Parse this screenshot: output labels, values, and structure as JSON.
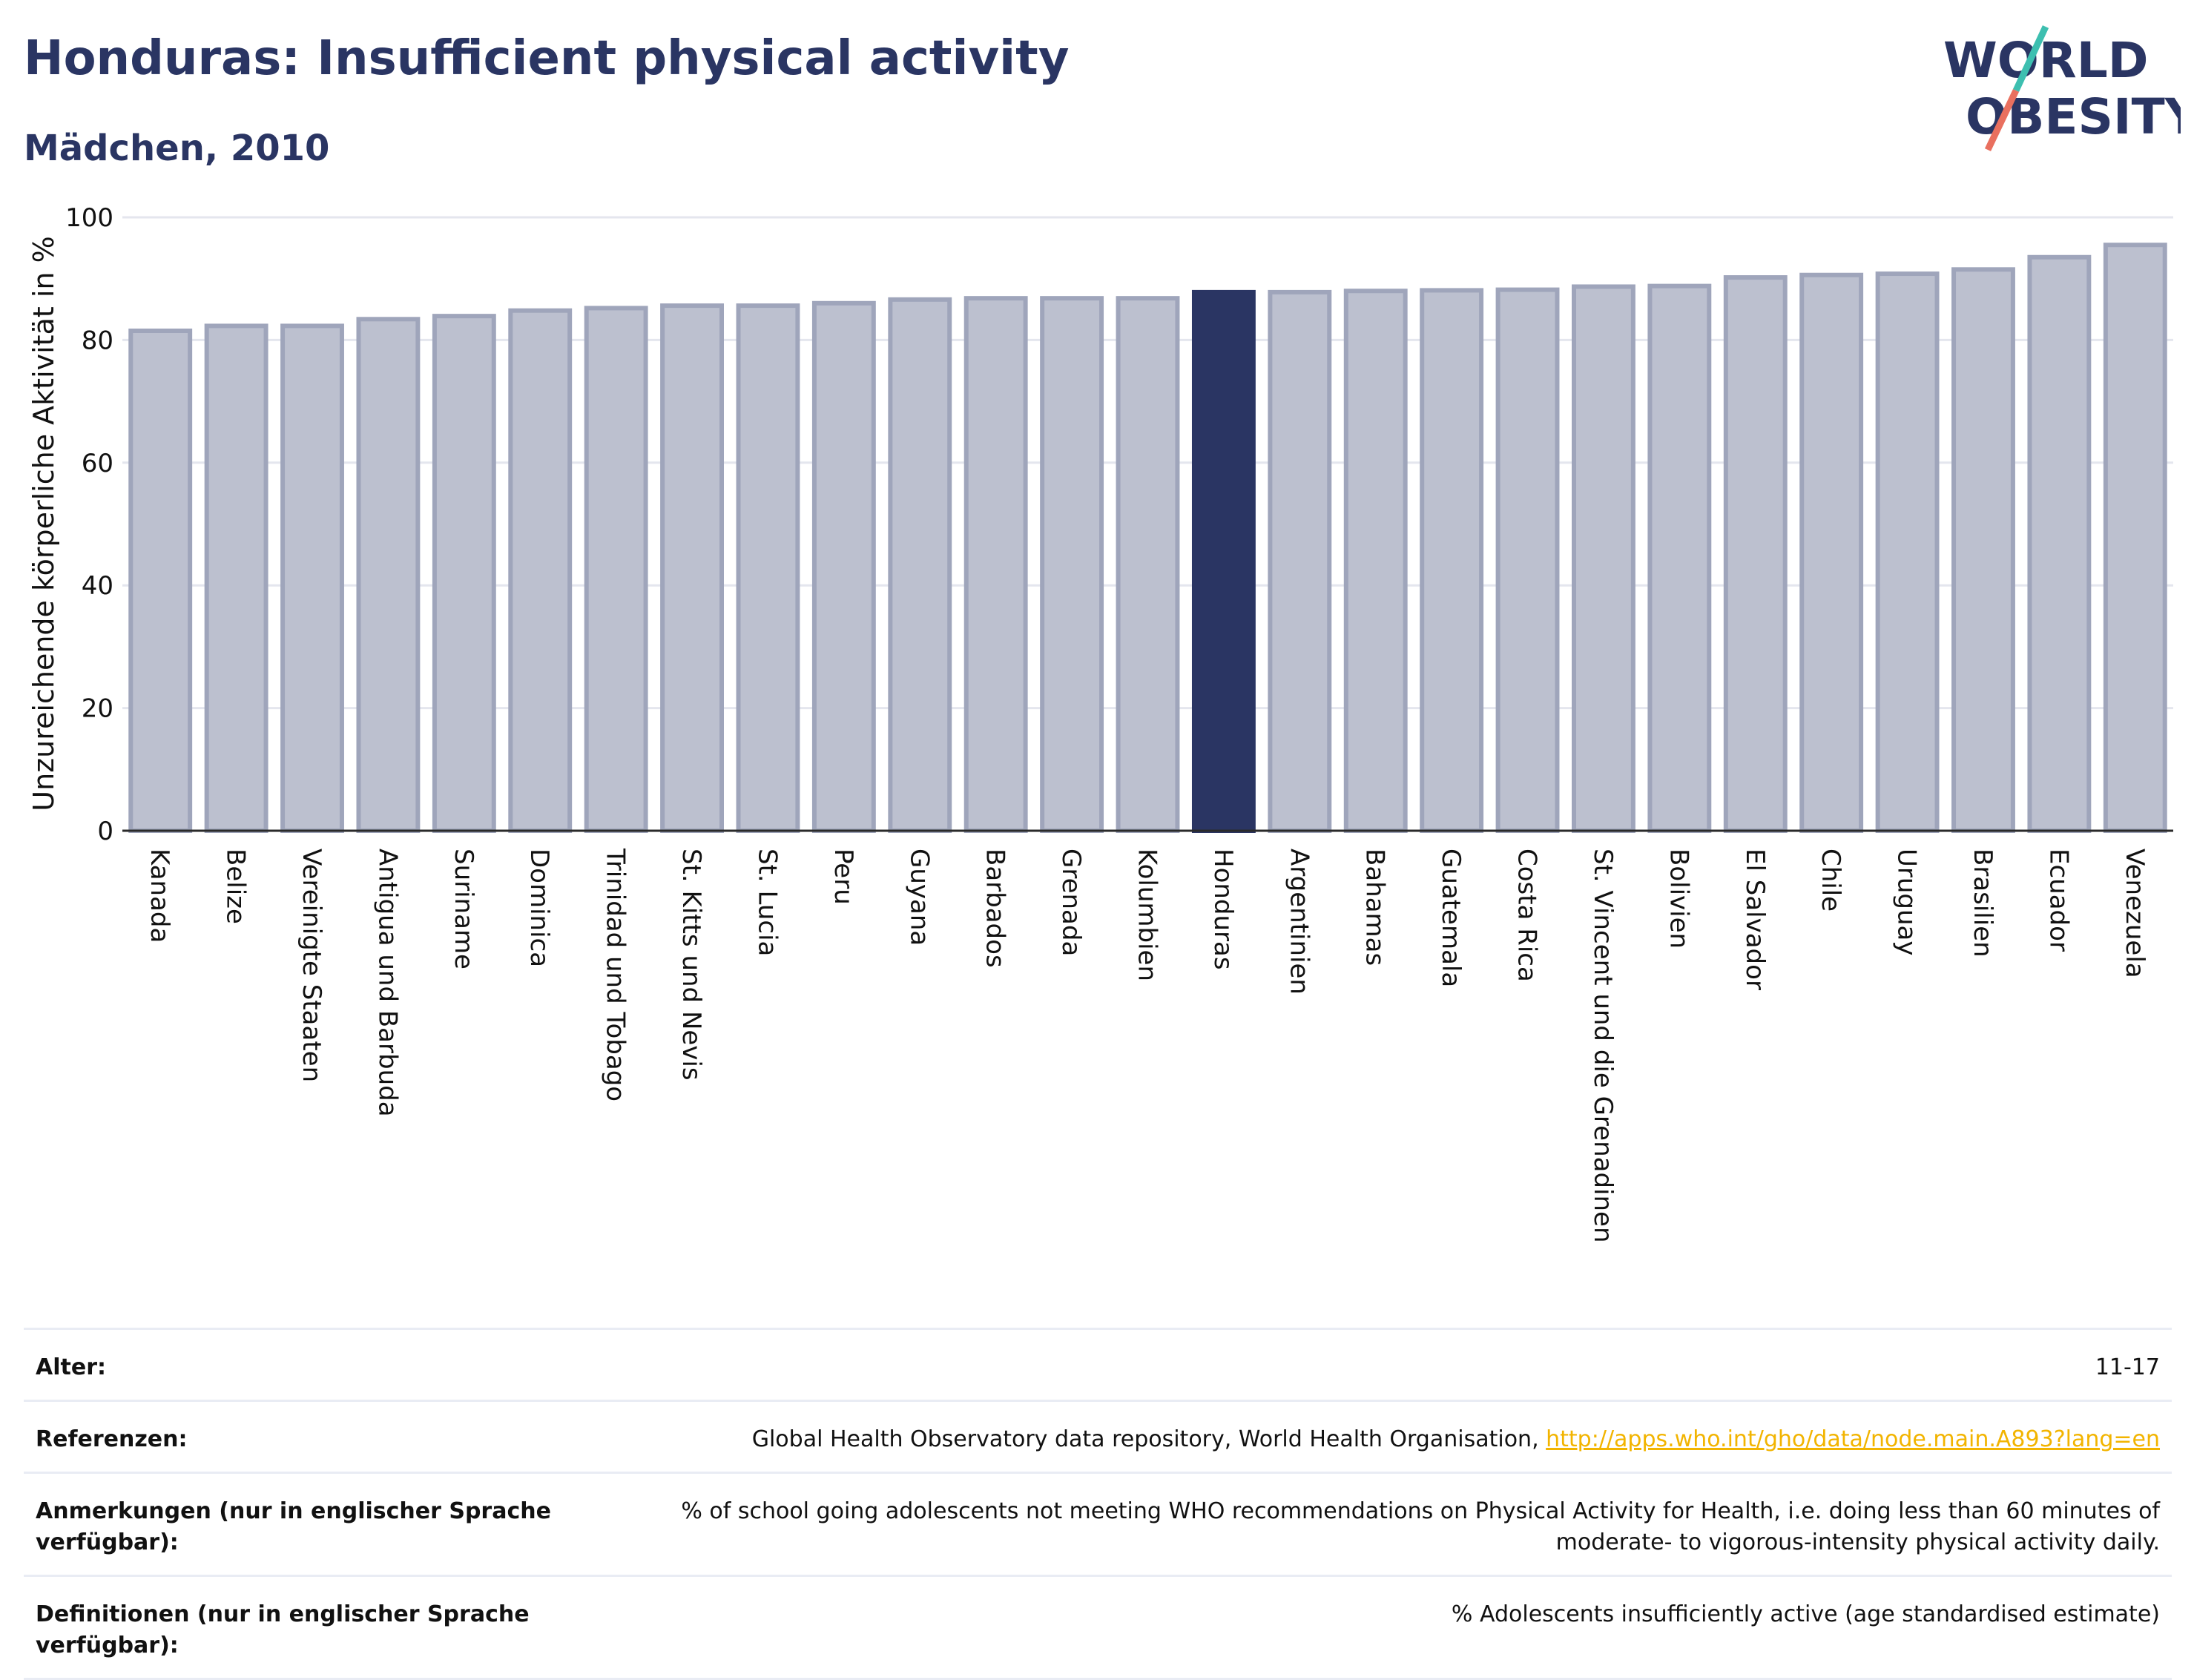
{
  "header": {
    "title": "Honduras: Insufficient physical activity",
    "subtitle": "Mädchen, 2010"
  },
  "logo": {
    "line1": "WORLD",
    "line2": "OBESITY",
    "colors": {
      "text": "#2a3563",
      "slash_top": "#3dbfb0",
      "slash_bottom": "#e9705f"
    }
  },
  "colors": {
    "bar": "#bcc0cf",
    "bar_border": "#9fa5bb",
    "highlight": "#2a3563",
    "grid": "#e4e6ee",
    "link": "#f2b400"
  },
  "chart_data": {
    "type": "bar",
    "ylabel": "Unzureichende körperliche Aktivität in %",
    "ylim": [
      0,
      100
    ],
    "yticks": [
      0,
      20,
      40,
      60,
      80,
      100
    ],
    "grid": true,
    "highlight": "Honduras",
    "categories": [
      "Kanada",
      "Belize",
      "Vereinigte Staaten",
      "Antigua und Barbuda",
      "Suriname",
      "Dominica",
      "Trinidad und Tobago",
      "St. Kitts und Nevis",
      "St. Lucia",
      "Peru",
      "Guyana",
      "Barbados",
      "Grenada",
      "Kolumbien",
      "Honduras",
      "Argentinien",
      "Bahamas",
      "Guatemala",
      "Costa Rica",
      "St. Vincent und die Grenadinen",
      "Bolivien",
      "El Salvador",
      "Chile",
      "Uruguay",
      "Brasilien",
      "Ecuador",
      "Venezuela"
    ],
    "values": [
      81.5,
      82.3,
      82.3,
      83.4,
      83.9,
      84.8,
      85.2,
      85.6,
      85.6,
      86.0,
      86.6,
      86.8,
      86.8,
      86.8,
      87.8,
      87.8,
      88.0,
      88.1,
      88.2,
      88.7,
      88.8,
      90.2,
      90.6,
      90.8,
      91.5,
      93.5,
      95.5
    ]
  },
  "info": [
    {
      "label": "Alter:",
      "value": "11-17"
    },
    {
      "label": "Referenzen:",
      "value": "Global Health Observatory data repository, World Health Organisation, ",
      "link": "http://apps.who.int/gho/data/node.main.A893?lang=en"
    },
    {
      "label": "Anmerkungen (nur in englischer Sprache verfügbar):",
      "value": "% of school going adolescents not meeting WHO recommendations on Physical Activity for Health, i.e. doing less than 60 minutes of moderate- to vigorous-intensity physical activity daily."
    },
    {
      "label": "Definitionen (nur in englischer Sprache verfügbar):",
      "value": "% Adolescents insufficiently active (age standardised estimate)"
    }
  ]
}
